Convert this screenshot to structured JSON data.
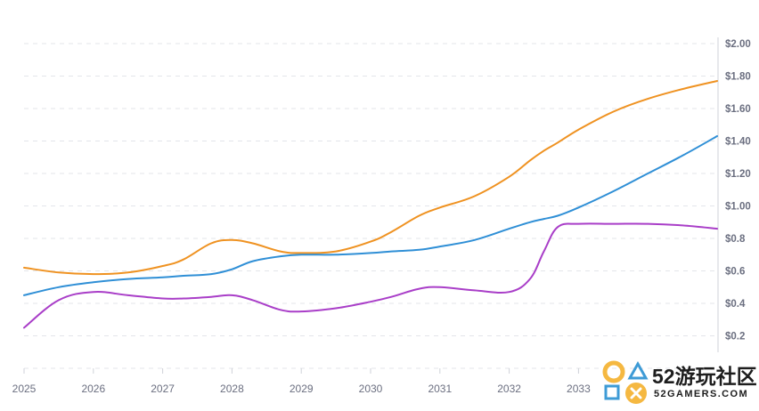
{
  "chart_data": {
    "type": "line",
    "x": [
      2025,
      2025.5,
      2026,
      2026.5,
      2027,
      2027.3,
      2027.7,
      2028,
      2028.3,
      2028.7,
      2029,
      2029.5,
      2030,
      2030.3,
      2030.7,
      2031,
      2031.5,
      2032,
      2032.3,
      2032.5,
      2032.7,
      2033,
      2033.5,
      2034,
      2034.5,
      2035
    ],
    "x_tick_labels": [
      "2025",
      "2026",
      "2027",
      "2028",
      "2029",
      "2030",
      "2031",
      "2032",
      "2033"
    ],
    "y_tick_labels": [
      "$2.00",
      "$1.80",
      "$1.60",
      "$1.40",
      "$1.20",
      "$1.00",
      "$0.8",
      "$0.6",
      "$0.4",
      "$0.2"
    ],
    "y_ticks": [
      2.0,
      1.8,
      1.6,
      1.4,
      1.2,
      1.0,
      0.8,
      0.6,
      0.4,
      0.2
    ],
    "xlim": [
      2025,
      2035
    ],
    "ylim": [
      0.0,
      2.0
    ],
    "y_axis_side": "right",
    "grid": true,
    "series": [
      {
        "color": "#ef9221",
        "values": [
          0.62,
          0.59,
          0.58,
          0.59,
          0.63,
          0.67,
          0.77,
          0.79,
          0.77,
          0.72,
          0.71,
          0.72,
          0.78,
          0.84,
          0.94,
          0.99,
          1.06,
          1.18,
          1.28,
          1.34,
          1.39,
          1.47,
          1.58,
          1.66,
          1.72,
          1.77
        ]
      },
      {
        "color": "#2f8fd6",
        "values": [
          0.45,
          0.5,
          0.53,
          0.55,
          0.56,
          0.57,
          0.58,
          0.61,
          0.66,
          0.69,
          0.7,
          0.7,
          0.71,
          0.72,
          0.73,
          0.75,
          0.79,
          0.86,
          0.9,
          0.92,
          0.94,
          0.99,
          1.09,
          1.2,
          1.31,
          1.43
        ]
      },
      {
        "color": "#a93ec8",
        "values": [
          0.25,
          0.42,
          0.47,
          0.45,
          0.43,
          0.43,
          0.44,
          0.45,
          0.42,
          0.36,
          0.35,
          0.37,
          0.41,
          0.44,
          0.49,
          0.5,
          0.48,
          0.47,
          0.55,
          0.72,
          0.87,
          0.89,
          0.89,
          0.89,
          0.88,
          0.86
        ]
      }
    ]
  },
  "watermark": {
    "title": "52游玩社区",
    "url": "52GAMERS.COM",
    "colors": {
      "circle": "#f5b841",
      "triangle": "#3e9bd6",
      "square": "#3e9bd6",
      "cross": "#f5b841"
    }
  }
}
